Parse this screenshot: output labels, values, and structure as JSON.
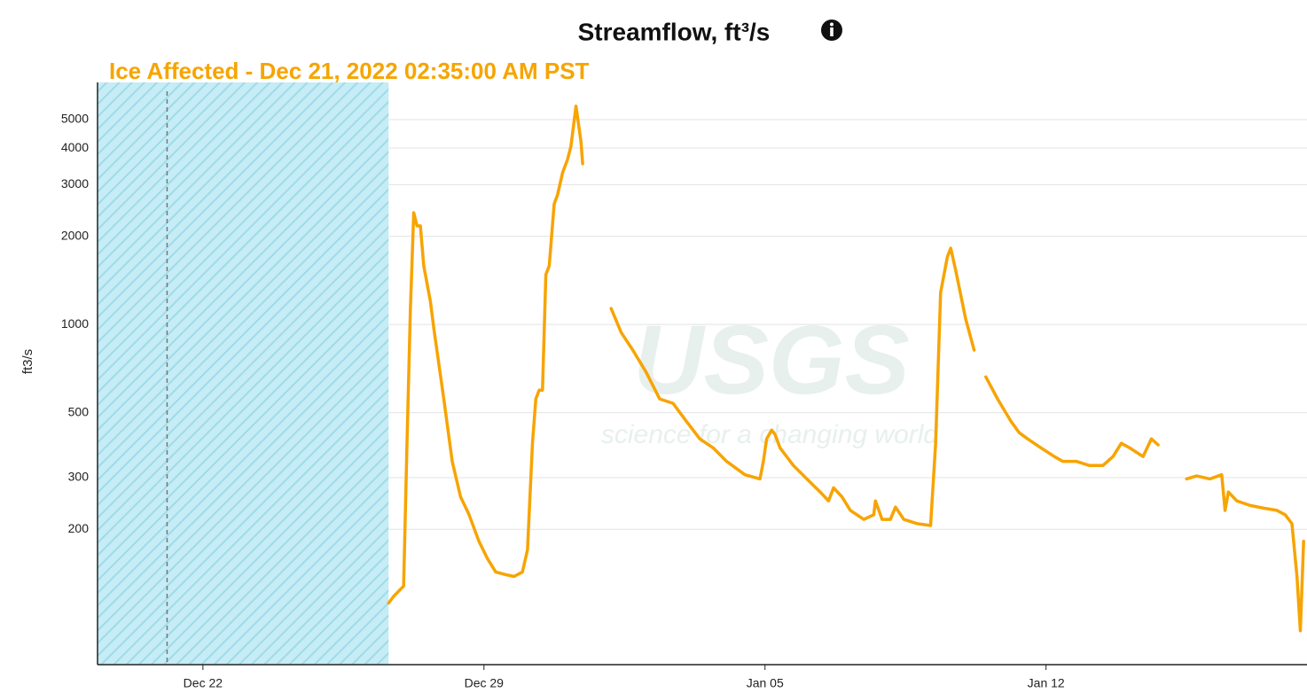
{
  "chart_data": {
    "type": "line",
    "title": "Streamflow, ft³/s",
    "y_label": "ft3/s",
    "log_scale_y": true,
    "grid": true,
    "ice_affected": {
      "label": "Ice Affected - Dec 21, 2022 02:35:00 AM PST",
      "marker": "2022-12-21 02:35",
      "end": "2022-12-26 15:00"
    },
    "watermark": {
      "text": "USGS",
      "tagline": "science for a changing world"
    },
    "xlim": [
      "2022-12-19 09:00",
      "2023-01-18 12:00"
    ],
    "xticks": [
      {
        "value": "2022-12-22",
        "label": "Dec 22"
      },
      {
        "value": "2022-12-29",
        "label": "Dec 29"
      },
      {
        "value": "2023-01-05",
        "label": "Jan 05"
      },
      {
        "value": "2023-01-12",
        "label": "Jan 12"
      }
    ],
    "ylim": [
      69,
      6700
    ],
    "yticks": [
      200,
      300,
      500,
      1000,
      2000,
      3000,
      4000,
      5000
    ],
    "x": [
      "2022-12-26 15:00",
      "2022-12-26 18:00",
      "2022-12-27 00:00",
      "2022-12-27 02:00",
      "2022-12-27 04:00",
      "2022-12-27 06:00",
      "2022-12-27 08:00",
      "2022-12-27 10:00",
      "2022-12-27 12:00",
      "2022-12-27 16:00",
      "2022-12-27 18:00",
      "2022-12-28 00:00",
      "2022-12-28 05:00",
      "2022-12-28 10:00",
      "2022-12-28 15:00",
      "2022-12-28 21:00",
      "2022-12-29 02:00",
      "2022-12-29 07:00",
      "2022-12-29 13:00",
      "2022-12-29 18:00",
      "2022-12-29 23:00",
      "2022-12-30 02:00",
      "2022-12-30 05:00",
      "2022-12-30 07:00",
      "2022-12-30 09:00",
      "2022-12-30 11:00",
      "2022-12-30 13:00",
      "2022-12-30 15:00",
      "2022-12-30 18:00",
      "2022-12-30 20:00",
      "2022-12-30 23:00",
      "2022-12-31 02:00",
      "2022-12-31 04:00",
      "2022-12-31 07:00",
      "2022-12-31 10:00",
      "2022-12-31 11:00",
      "2022-12-31 18:00",
      "2023-01-01 04:00",
      "2023-01-01 10:00",
      "2023-01-01 17:00",
      "2023-01-02 01:00",
      "2023-01-02 09:00",
      "2023-01-02 17:00",
      "2023-01-03 01:00",
      "2023-01-03 09:00",
      "2023-01-03 17:00",
      "2023-01-04 01:00",
      "2023-01-04 12:00",
      "2023-01-04 21:00",
      "2023-01-04 23:00",
      "2023-01-05 01:00",
      "2023-01-05 04:00",
      "2023-01-05 06:00",
      "2023-01-05 09:00",
      "2023-01-05 17:00",
      "2023-01-06 01:00",
      "2023-01-06 09:00",
      "2023-01-06 14:00",
      "2023-01-06 17:00",
      "2023-01-06 22:00",
      "2023-01-07 03:00",
      "2023-01-07 11:00",
      "2023-01-07 17:00",
      "2023-01-07 18:00",
      "2023-01-07 22:00",
      "2023-01-08 03:00",
      "2023-01-08 06:00",
      "2023-01-08 11:00",
      "2023-01-08 19:00",
      "2023-01-09 03:00",
      "2023-01-09 06:00",
      "2023-01-09 09:00",
      "2023-01-09 13:00",
      "2023-01-09 15:00",
      "2023-01-09 18:00",
      "2023-01-10 00:00",
      "2023-01-10 05:00",
      "2023-01-10 08:00",
      "2023-01-10 12:00",
      "2023-01-10 19:00",
      "2023-01-11 03:00",
      "2023-01-11 08:00",
      "2023-01-11 13:00",
      "2023-01-11 21:00",
      "2023-01-12 05:00",
      "2023-01-12 10:00",
      "2023-01-12 18:00",
      "2023-01-13 02:00",
      "2023-01-13 10:00",
      "2023-01-13 16:00",
      "2023-01-13 21:00",
      "2023-01-14 02:00",
      "2023-01-14 10:00",
      "2023-01-14 15:00",
      "2023-01-14 19:00",
      "2023-01-15 06:00",
      "2023-01-15 12:00",
      "2023-01-15 18:00",
      "2023-01-16 02:00",
      "2023-01-16 09:00",
      "2023-01-16 11:00",
      "2023-01-16 13:00",
      "2023-01-16 18:00",
      "2023-01-17 02:00",
      "2023-01-17 10:00",
      "2023-01-17 18:00",
      "2023-01-17 23:00",
      "2023-01-18 03:00",
      "2023-01-18 06:00",
      "2023-01-18 08:00",
      "2023-01-18 10:00"
    ],
    "series": [
      {
        "color": "#f7a400",
        "values": [
          112,
          118,
          128,
          393,
          1118,
          2407,
          2170,
          2170,
          1585,
          1199,
          972,
          557,
          341,
          258,
          225,
          182,
          159,
          143,
          140,
          138,
          143,
          170,
          393,
          557,
          597,
          597,
          1478,
          1585,
          2579,
          2771,
          3298,
          3661,
          4059,
          5562,
          4206,
          3535,
          null,
          1134,
          939,
          817,
          686,
          557,
          538,
          467,
          407,
          379,
          341,
          307,
          297,
          341,
          407,
          436,
          421,
          379,
          330,
          297,
          268,
          250,
          277,
          258,
          232,
          216,
          224,
          250,
          216,
          216,
          238,
          216,
          209,
          206,
          393,
          1285,
          1699,
          1822,
          1531,
          1043,
          817,
          null,
          662,
          557,
          467,
          427,
          407,
          379,
          354,
          341,
          341,
          330,
          330,
          354,
          393,
          379,
          354,
          407,
          388,
          null,
          297,
          304,
          297,
          307,
          232,
          268,
          250,
          241,
          236,
          232,
          224,
          209,
          138,
          90,
          182
        ]
      }
    ]
  }
}
